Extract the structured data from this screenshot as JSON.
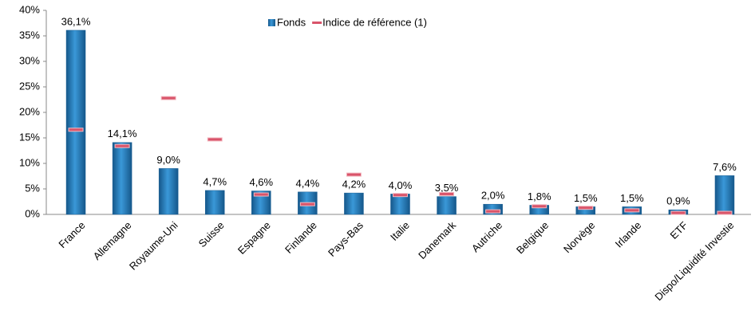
{
  "chart_data": {
    "type": "bar",
    "categories": [
      "France",
      "Allemagne",
      "Royaume-Uni",
      "Suisse",
      "Espagne",
      "Finlande",
      "Pays-Bas",
      "Italie",
      "Danemark",
      "Autriche",
      "Belgique",
      "Norvège",
      "Irlande",
      "ETF",
      "Dispo/Liquidité Investie"
    ],
    "series": [
      {
        "name": "Fonds",
        "color": "#2b80c0",
        "style": "bar",
        "values": [
          36.1,
          14.1,
          9.0,
          4.7,
          4.6,
          4.4,
          4.2,
          4.0,
          3.5,
          2.0,
          1.8,
          1.5,
          1.5,
          0.9,
          7.6
        ],
        "value_labels": [
          "36,1%",
          "14,1%",
          "9,0%",
          "4,7%",
          "4,6%",
          "4,4%",
          "4,2%",
          "4,0%",
          "3,5%",
          "2,0%",
          "1,8%",
          "1,5%",
          "1,5%",
          "0,9%",
          "7,6%"
        ]
      },
      {
        "name": "Indice de référence (1)",
        "color": "#d9546a",
        "style": "dash",
        "values": [
          16.6,
          13.4,
          22.8,
          14.7,
          3.9,
          2.0,
          7.8,
          3.8,
          4.0,
          0.6,
          1.6,
          1.3,
          0.8,
          0.3,
          0.3
        ]
      }
    ],
    "ylim": [
      0,
      40
    ],
    "yticks": [
      {
        "value": 0,
        "label": "0%"
      },
      {
        "value": 5,
        "label": "5%"
      },
      {
        "value": 10,
        "label": "10%"
      },
      {
        "value": 15,
        "label": "15%"
      },
      {
        "value": 20,
        "label": "20%"
      },
      {
        "value": 25,
        "label": "25%"
      },
      {
        "value": 30,
        "label": "30%"
      },
      {
        "value": 35,
        "label": "35%"
      },
      {
        "value": 40,
        "label": "40%"
      }
    ],
    "grid": false,
    "legend": "top"
  }
}
